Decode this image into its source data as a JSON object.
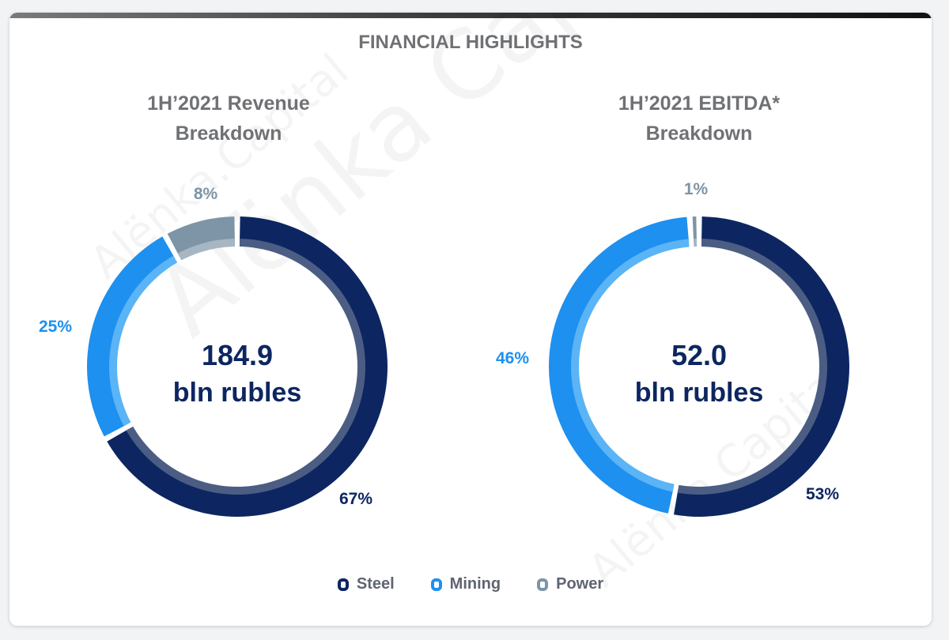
{
  "header": {
    "title": "FINANCIAL HIGHLIGHTS"
  },
  "watermark": "Alёnka Capital",
  "watermark_small": "Alёnka.Capital",
  "colors": {
    "steel": "#0d2661",
    "mining": "#1e90ef",
    "power": "#7d95a6"
  },
  "legend": [
    {
      "label": "Steel",
      "color": "#0d2661"
    },
    {
      "label": "Mining",
      "color": "#1e90ef"
    },
    {
      "label": "Power",
      "color": "#7d95a6"
    }
  ],
  "chart_data": [
    {
      "type": "pie",
      "title_line1": "1H’2021 Revenue",
      "title_line2": "Breakdown",
      "center_value": "184.9",
      "center_unit": "bln rubles",
      "categories": [
        "Steel",
        "Mining",
        "Power"
      ],
      "values": [
        67,
        25,
        8
      ],
      "labels": [
        "67%",
        "25%",
        "8%"
      ]
    },
    {
      "type": "pie",
      "title_line1": "1H’2021 EBITDA*",
      "title_line2": "Breakdown",
      "center_value": "52.0",
      "center_unit": "bln rubles",
      "categories": [
        "Steel",
        "Mining",
        "Power"
      ],
      "values": [
        53,
        46,
        1
      ],
      "labels": [
        "53%",
        "46%",
        "1%"
      ]
    }
  ]
}
